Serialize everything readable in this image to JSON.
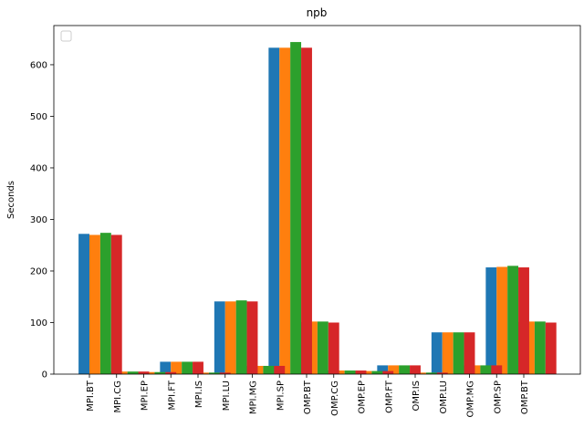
{
  "chart_data": {
    "type": "bar",
    "title": "npb",
    "ylabel": "Seconds",
    "categories": [
      "MPI.BT",
      "MPI.CG",
      "MPI.EP",
      "MPI.FT",
      "MPI.IS",
      "MPI.LU",
      "MPI.MG",
      "MPI.SP",
      "OMP.BT",
      "OMP.CG",
      "OMP.EP",
      "OMP.FT",
      "OMP.IS",
      "OMP.LU",
      "OMP.MG",
      "OMP.SP",
      "OMP.BT"
    ],
    "series": [
      {
        "color": "#1f77b4",
        "values": [
          272,
          5,
          4,
          24,
          3,
          141,
          16,
          633,
          101,
          7,
          6,
          17,
          3,
          81,
          17,
          207,
          101
        ]
      },
      {
        "color": "#ff7f0e",
        "values": [
          270,
          5,
          4,
          24,
          3,
          141,
          16,
          633,
          102,
          7,
          6,
          17,
          3,
          81,
          17,
          208,
          102
        ]
      },
      {
        "color": "#2ca02c",
        "values": [
          274,
          5,
          4,
          24,
          3,
          143,
          16,
          644,
          102,
          7,
          6,
          17,
          3,
          81,
          17,
          210,
          102
        ]
      },
      {
        "color": "#d62728",
        "values": [
          270,
          5,
          4,
          24,
          3,
          141,
          16,
          633,
          100,
          7,
          6,
          17,
          3,
          81,
          17,
          207,
          100
        ]
      }
    ],
    "ylim": [
      0,
      676
    ],
    "yticks": [
      0,
      100,
      200,
      300,
      400,
      500,
      600
    ],
    "legend": "upper left"
  }
}
